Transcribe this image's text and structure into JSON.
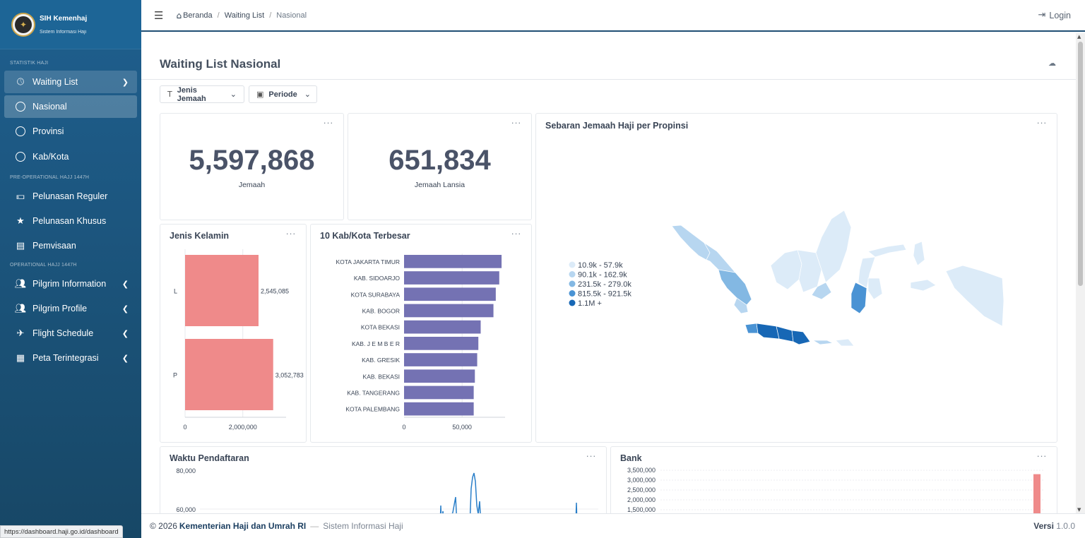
{
  "brand": {
    "title": "SIH Kemenhaj",
    "subtitle": "Sistem Informasi Haji"
  },
  "sidebar": {
    "sections": [
      "STATISTIK HAJI",
      "PRE-OPERATIONAL HAJJ 1447H",
      "OPERATIONAL HAJJ 1447H"
    ],
    "waiting_list": "Waiting List",
    "sub_items": [
      "Nasional",
      "Provinsi",
      "Kab/Kota"
    ],
    "pre_items": [
      "Pelunasan Reguler",
      "Pelunasan Khusus",
      "Pemvisaan"
    ],
    "op_items": [
      "Pilgrim Information",
      "Pilgrim Profile",
      "Flight Schedule",
      "Peta Terintegrasi"
    ]
  },
  "topbar": {
    "crumbs": [
      "Beranda",
      "Waiting List",
      "Nasional"
    ],
    "login": "Login"
  },
  "page": {
    "title": "Waiting List Nasional"
  },
  "filters": [
    "Jenis Jemaah",
    "Periode"
  ],
  "kpi": [
    {
      "value": "5,597,868",
      "label": "Jemaah"
    },
    {
      "value": "651,834",
      "label": "Jemaah Lansia"
    }
  ],
  "card_menu": "···",
  "cards": {
    "gender": "Jenis Kelamin",
    "top10": "10 Kab/Kota Terbesar",
    "map": "Sebaran Jemaah Haji per Propinsi",
    "waktu": "Waktu Pendaftaran",
    "bank": "Bank"
  },
  "map_legend": [
    {
      "label": "10.9k - 57.9k",
      "color": "#dcebf8"
    },
    {
      "label": "90.1k - 162.9k",
      "color": "#b7d6f0"
    },
    {
      "label": "231.5k - 279.0k",
      "color": "#83b8e3"
    },
    {
      "label": "815.5k - 921.5k",
      "color": "#4a93d4"
    },
    {
      "label": "1.1M +",
      "color": "#1767b5"
    }
  ],
  "chart_data": [
    {
      "type": "bar",
      "orientation": "horizontal",
      "title": "Jenis Kelamin",
      "categories": [
        "L",
        "P"
      ],
      "values": [
        2545085,
        3052783
      ],
      "value_labels": [
        "2,545,085",
        "3,052,783"
      ],
      "x_ticks": [
        "0",
        "2,000,000"
      ],
      "xlim": [
        0,
        3500000
      ],
      "color": "#ef8a8a"
    },
    {
      "type": "bar",
      "orientation": "horizontal",
      "title": "10 Kab/Kota Terbesar",
      "categories": [
        "KOTA JAKARTA TIMUR",
        "KAB. SIDOARJO",
        "KOTA SURABAYA",
        "KAB. BOGOR",
        "KOTA BEKASI",
        "KAB. J E M B E R",
        "KAB. GRESIK",
        "KAB. BEKASI",
        "KAB. TANGERANG",
        "KOTA PALEMBANG"
      ],
      "values": [
        84000,
        82000,
        79000,
        77000,
        66000,
        64000,
        63000,
        61000,
        60000,
        60000
      ],
      "x_ticks": [
        "0",
        "50,000"
      ],
      "xlim": [
        0,
        87000
      ],
      "color": "#7472b3"
    },
    {
      "type": "line",
      "title": "Waktu Pendaftaran",
      "y_ticks": [
        "80,000",
        "60,000"
      ],
      "color": "#2a7fc9"
    },
    {
      "type": "bar",
      "title": "Bank",
      "y_ticks": [
        "3,500,000",
        "3,000,000",
        "2,500,000",
        "2,000,000",
        "1,500,000"
      ],
      "values": [
        3300000
      ],
      "ylim": [
        1400000,
        3600000
      ],
      "color": "#ef8a8a"
    }
  ],
  "footer": {
    "copy": "© 2026",
    "org": "Kementerian Haji dan Umrah RI",
    "sep": "—",
    "app": "Sistem Informasi Haji",
    "ver_label": "Versi",
    "ver": "1.0.0"
  },
  "status_url": "https://dashboard.haji.go.id/dashboard"
}
